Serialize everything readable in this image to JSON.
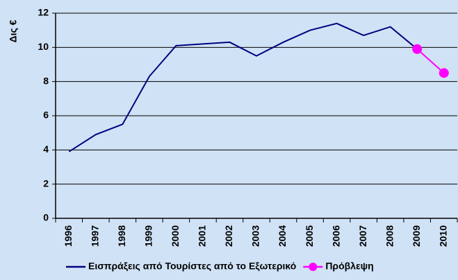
{
  "chart_data": {
    "type": "line",
    "y_label": "Δις €",
    "categories": [
      "1996",
      "1997",
      "1998",
      "1999",
      "2000",
      "2001",
      "2002",
      "2003",
      "2004",
      "2005",
      "2006",
      "2007",
      "2008",
      "2009",
      "2010"
    ],
    "series": [
      {
        "name": "Εισπράξεις από Τουρίστες από το Εξωτερικό",
        "color": "#000080",
        "marker": false,
        "values": [
          3.9,
          4.9,
          5.5,
          8.3,
          10.1,
          10.2,
          10.3,
          9.5,
          10.3,
          11.0,
          11.4,
          10.7,
          11.2,
          9.9,
          null
        ]
      },
      {
        "name": "Πρόβλεψη",
        "color": "#ff00ff",
        "marker": true,
        "values": [
          null,
          null,
          null,
          null,
          null,
          null,
          null,
          null,
          null,
          null,
          null,
          null,
          null,
          9.9,
          8.5
        ]
      }
    ],
    "ylim": [
      0,
      12
    ],
    "yticks": [
      0,
      2,
      4,
      6,
      8,
      10,
      12
    ],
    "grid": true
  }
}
